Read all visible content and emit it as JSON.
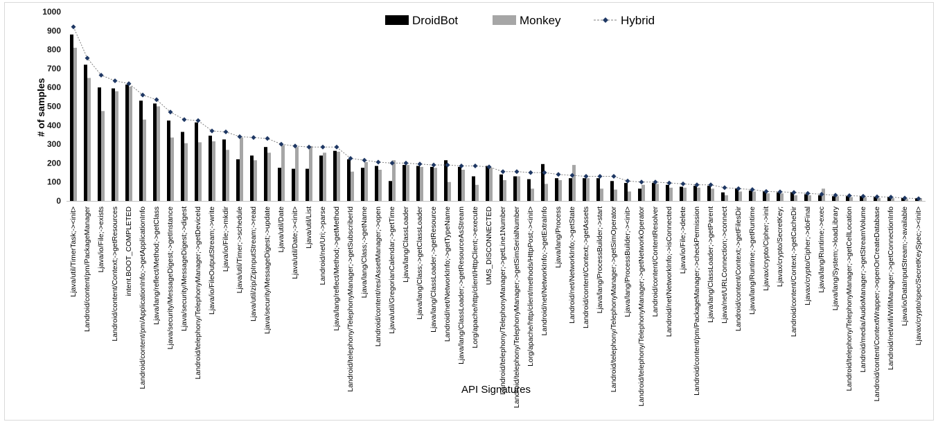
{
  "chart_data": {
    "type": "bar",
    "title": "",
    "xlabel": "API Signatures",
    "ylabel": "# of samples",
    "ylim": [
      0,
      1000
    ],
    "yticks": [
      0,
      100,
      200,
      300,
      400,
      500,
      600,
      700,
      800,
      900,
      1000
    ],
    "grid": false,
    "legend_position": "top-right",
    "colors": {
      "DroidBot": "#000000",
      "Monkey": "#a6a6a6",
      "Hybrid": "#1f3864",
      "hybrid_line": "#7f7f7f"
    },
    "categories": [
      "Ljava/util/TimerTask;-><init>",
      "Landroid/content/pm/PackageManager",
      "Ljava/io/File;->exists",
      "Landroid/content/Context;->getResources",
      "intent.BOOT_COMPLETED",
      "Landroid/content/pm/ApplicationInfo;->getApplicationInfo",
      "Ljava/lang/reflect/Method;->getClass",
      "Ljava/security/MessageDigest;->getInstance",
      "Ljava/security/MessageDigest;->digest",
      "Landroid/telephony/TelephonyManager;->getDeviceId",
      "Ljava/io/FileOutputStream;->write",
      "Ljava/io/File;->mkdir",
      "Ljava/util/Timer;->schedule",
      "Ljava/util/zip/ZipInputStream;->read",
      "Ljava/security/MessageDigest;->update",
      "Ljava/util/Date",
      "Ljava/util/Date;-><init>",
      "Ljava/util/List",
      "Landroid/net/Uri;->parse",
      "Ljava/lang/reflect/Method;->getMethod",
      "Landroid/telephony/TelephonyManager;->getSubscriberId",
      "Ljava/lang/Class;->getName",
      "Landroid/content/res/AssetManager;->open",
      "Ljava/util/GregorianCalendar;->getTime",
      "Ljava/lang/ClassLoader",
      "Ljava/lang/Class;->getClassLoader",
      "Ljava/lang/ClassLoader;->getResource",
      "Landroid/net/NetworkInfo;->getTypeName",
      "Ljava/lang/ClassLoader;->getResourceAsStream",
      "Lorg/apache/http/client/HttpClient;->execute",
      "UMS_DISCONNECTED",
      "Landroid/telephony/TelephonyManager;->getLine1Number",
      "Landroid/telephony/TelephonyManager;->getSimSerialNumber",
      "Lorg/apache/http/client/methods/HttpPost;-><init>",
      "Landroid/net/NetworkInfo;->getExtraInfo",
      "Ljava/lang/Process",
      "Landroid/net/NetworkInfo;->getState",
      "Landroid/content/Context;->getAssets",
      "Ljava/lang/ProcessBuilder;->start",
      "Landroid/telephony/TelephonyManager;->getSimOperator",
      "Ljava/lang/ProcessBuilder;-><init>",
      "Landroid/telephony/TelephonyManager;->getNetworkOperator",
      "Landroid/content/ContentResolver",
      "Landroid/net/NetworkInfo;->isConnected",
      "Ljava/io/File;->delete",
      "Landroid/content/pm/PackageManager;->checkPermission",
      "Ljava/lang/ClassLoader;->getParent",
      "Ljava/net/URLConnection;->connect",
      "Landroid/content/Context;->getFilesDir",
      "Ljava/lang/Runtime;->getRuntime",
      "Ljavax/crypto/Cipher;->init",
      "Ljavax/crypto/SecretKey;",
      "Landroid/content/Context;->getCacheDir",
      "Ljavax/crypto/Cipher;->doFinal",
      "Ljava/lang/Runtime;->exec",
      "Ljava/lang/System;->loadLibrary",
      "Landroid/telephony/TelephonyManager;->getCellLocation",
      "Landroid/media/AudioManager;->getStreamVolume",
      "Landroid/content/ContextWrapper;->openOrCreateDatabase",
      "Landroid/net/wifi/WifiManager;->getConnectionInfo",
      "Ljava/io/DataInputStream;->available",
      "Ljavax/crypto/spec/SecretKeySpec;-><init>"
    ],
    "series": [
      {
        "name": "DroidBot",
        "type": "bar",
        "values": [
          880,
          720,
          600,
          595,
          615,
          530,
          515,
          425,
          365,
          415,
          345,
          325,
          220,
          240,
          285,
          175,
          170,
          170,
          240,
          265,
          220,
          175,
          185,
          105,
          190,
          185,
          180,
          215,
          180,
          130,
          185,
          140,
          130,
          115,
          195,
          120,
          120,
          120,
          120,
          105,
          95,
          65,
          95,
          85,
          75,
          80,
          80,
          45,
          65,
          55,
          50,
          45,
          45,
          35,
          30,
          25,
          25,
          25,
          20,
          20,
          15,
          15
        ]
      },
      {
        "name": "Monkey",
        "type": "bar",
        "values": [
          810,
          650,
          475,
          580,
          605,
          430,
          500,
          335,
          305,
          310,
          315,
          270,
          335,
          215,
          255,
          295,
          285,
          290,
          255,
          260,
          155,
          205,
          165,
          215,
          190,
          180,
          175,
          100,
          165,
          85,
          175,
          110,
          130,
          65,
          90,
          110,
          190,
          120,
          65,
          60,
          50,
          85,
          90,
          70,
          70,
          70,
          65,
          30,
          50,
          50,
          40,
          40,
          30,
          30,
          65,
          25,
          20,
          20,
          15,
          15,
          10,
          15
        ]
      },
      {
        "name": "Hybrid",
        "type": "line",
        "values": [
          920,
          755,
          665,
          635,
          620,
          560,
          535,
          470,
          430,
          425,
          370,
          365,
          340,
          335,
          330,
          300,
          290,
          285,
          285,
          285,
          225,
          215,
          205,
          200,
          200,
          195,
          190,
          190,
          185,
          185,
          180,
          155,
          155,
          150,
          150,
          140,
          135,
          130,
          130,
          130,
          105,
          100,
          100,
          95,
          90,
          85,
          85,
          70,
          65,
          60,
          50,
          48,
          45,
          40,
          35,
          30,
          28,
          25,
          22,
          20,
          15,
          12
        ]
      }
    ]
  }
}
